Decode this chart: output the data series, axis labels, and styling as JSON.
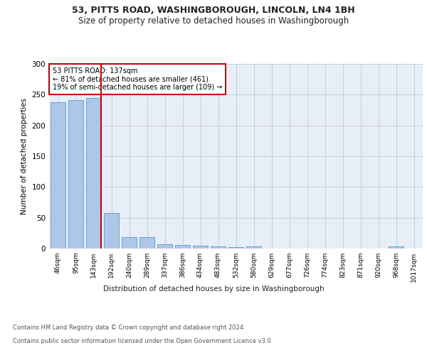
{
  "title": "53, PITTS ROAD, WASHINGBOROUGH, LINCOLN, LN4 1BH",
  "subtitle": "Size of property relative to detached houses in Washingborough",
  "xlabel": "Distribution of detached houses by size in Washingborough",
  "ylabel": "Number of detached properties",
  "categories": [
    "46sqm",
    "95sqm",
    "143sqm",
    "192sqm",
    "240sqm",
    "289sqm",
    "337sqm",
    "386sqm",
    "434sqm",
    "483sqm",
    "532sqm",
    "580sqm",
    "629sqm",
    "677sqm",
    "726sqm",
    "774sqm",
    "823sqm",
    "871sqm",
    "920sqm",
    "968sqm",
    "1017sqm"
  ],
  "values": [
    238,
    241,
    245,
    58,
    19,
    19,
    7,
    6,
    5,
    4,
    2,
    4,
    0,
    0,
    0,
    0,
    0,
    0,
    0,
    3,
    0
  ],
  "bar_color": "#aec6e8",
  "bar_edge_color": "#5b9bd5",
  "marker_index": 2,
  "marker_color": "#cc0000",
  "annotation_text": "53 PITTS ROAD: 137sqm\n← 81% of detached houses are smaller (461)\n19% of semi-detached houses are larger (109) →",
  "annotation_box_color": "#ffffff",
  "annotation_box_edge": "#cc0000",
  "footer_line1": "Contains HM Land Registry data © Crown copyright and database right 2024.",
  "footer_line2": "Contains public sector information licensed under the Open Government Licence v3.0.",
  "ylim": [
    0,
    300
  ],
  "yticks": [
    0,
    50,
    100,
    150,
    200,
    250,
    300
  ],
  "bg_color": "#e8eef7",
  "title_fontsize": 9,
  "subtitle_fontsize": 8.5
}
